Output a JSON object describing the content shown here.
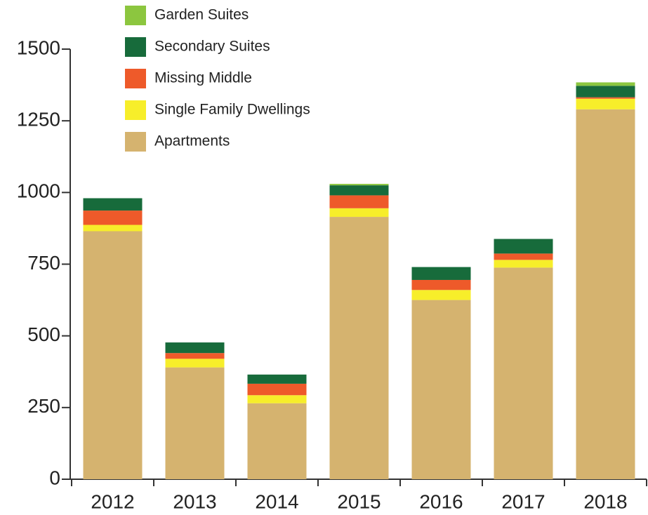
{
  "chart_data": {
    "type": "stacked_bar",
    "categories": [
      "2012",
      "2013",
      "2014",
      "2015",
      "2016",
      "2017",
      "2018"
    ],
    "series": [
      {
        "name": "Apartments",
        "color": "#d5b36f",
        "values": [
          865,
          390,
          265,
          915,
          625,
          738,
          1290
        ]
      },
      {
        "name": "Single Family Dwellings",
        "color": "#f7ee2a",
        "values": [
          22,
          30,
          28,
          30,
          35,
          27,
          37
        ]
      },
      {
        "name": "Missing Middle",
        "color": "#ee5a2a",
        "values": [
          50,
          20,
          40,
          45,
          35,
          22,
          5
        ]
      },
      {
        "name": "Secondary Suites",
        "color": "#176b3b",
        "values": [
          43,
          37,
          32,
          35,
          45,
          51,
          40
        ]
      },
      {
        "name": "Garden Suites",
        "color": "#8cc63f",
        "values": [
          0,
          0,
          0,
          5,
          0,
          0,
          12
        ]
      }
    ],
    "ylim": [
      0,
      1500
    ],
    "yticks": [
      0,
      250,
      500,
      750,
      1000,
      1250,
      1500
    ],
    "legend": "top-left"
  }
}
